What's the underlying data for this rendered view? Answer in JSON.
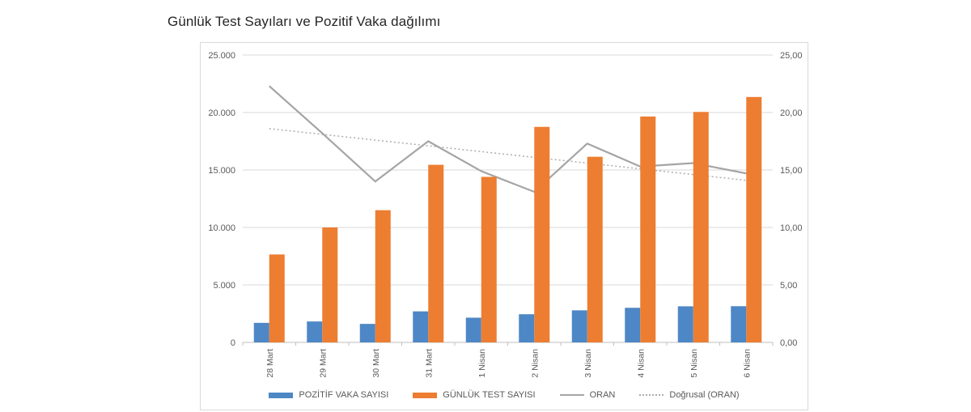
{
  "title": "Günlük Test Sayıları ve Pozitif Vaka dağılımı",
  "chart_data": {
    "type": "bar",
    "subtype": "combo-clustered-bar-with-lines",
    "categories": [
      "28 Mart",
      "29 Mart",
      "30 Mart",
      "31 Mart",
      "1 Nisan",
      "2 Nisan",
      "3 Nisan",
      "4 Nisan",
      "5 Nisan",
      "6 Nisan"
    ],
    "bar_series": [
      {
        "name": "POZİTİF VAKA SAYISI",
        "axis": "left",
        "color": "#4e87c6",
        "values": [
          1700,
          1820,
          1610,
          2700,
          2150,
          2450,
          2790,
          3010,
          3140,
          3150
        ]
      },
      {
        "name": "GÜNLÜK TEST SAYISI",
        "axis": "left",
        "color": "#ed7d31",
        "values": [
          7650,
          10000,
          11500,
          15450,
          14400,
          18750,
          16150,
          19650,
          20050,
          21350
        ]
      }
    ],
    "line_series": [
      {
        "name": "ORAN",
        "axis": "right",
        "color": "#a5a5a5",
        "values": [
          22.3,
          18.2,
          14.0,
          17.5,
          14.9,
          13.1,
          17.3,
          15.3,
          15.6,
          14.7
        ]
      }
    ],
    "trendline": {
      "name": "Doğrusal (ORAN)",
      "axis": "right",
      "style": "dotted",
      "color": "#adadad",
      "start": 18.6,
      "end": 14.1
    },
    "left_axis": {
      "min": 0,
      "max": 25000,
      "step": 5000,
      "ticks": [
        "0",
        "5.000",
        "10.000",
        "15.000",
        "20.000",
        "25.000"
      ]
    },
    "right_axis": {
      "min": 0,
      "max": 25,
      "step": 5,
      "ticks": [
        "0,00",
        "5,00",
        "10,00",
        "15,00",
        "20,00",
        "25,00"
      ]
    },
    "grid": true,
    "legend_position": "bottom",
    "colors": {
      "gridline": "#d9d9d9",
      "axis_line": "#bfbfbf",
      "axis_text": "#595959",
      "title_text": "#262626",
      "chart_border": "#d9d9d9"
    }
  }
}
